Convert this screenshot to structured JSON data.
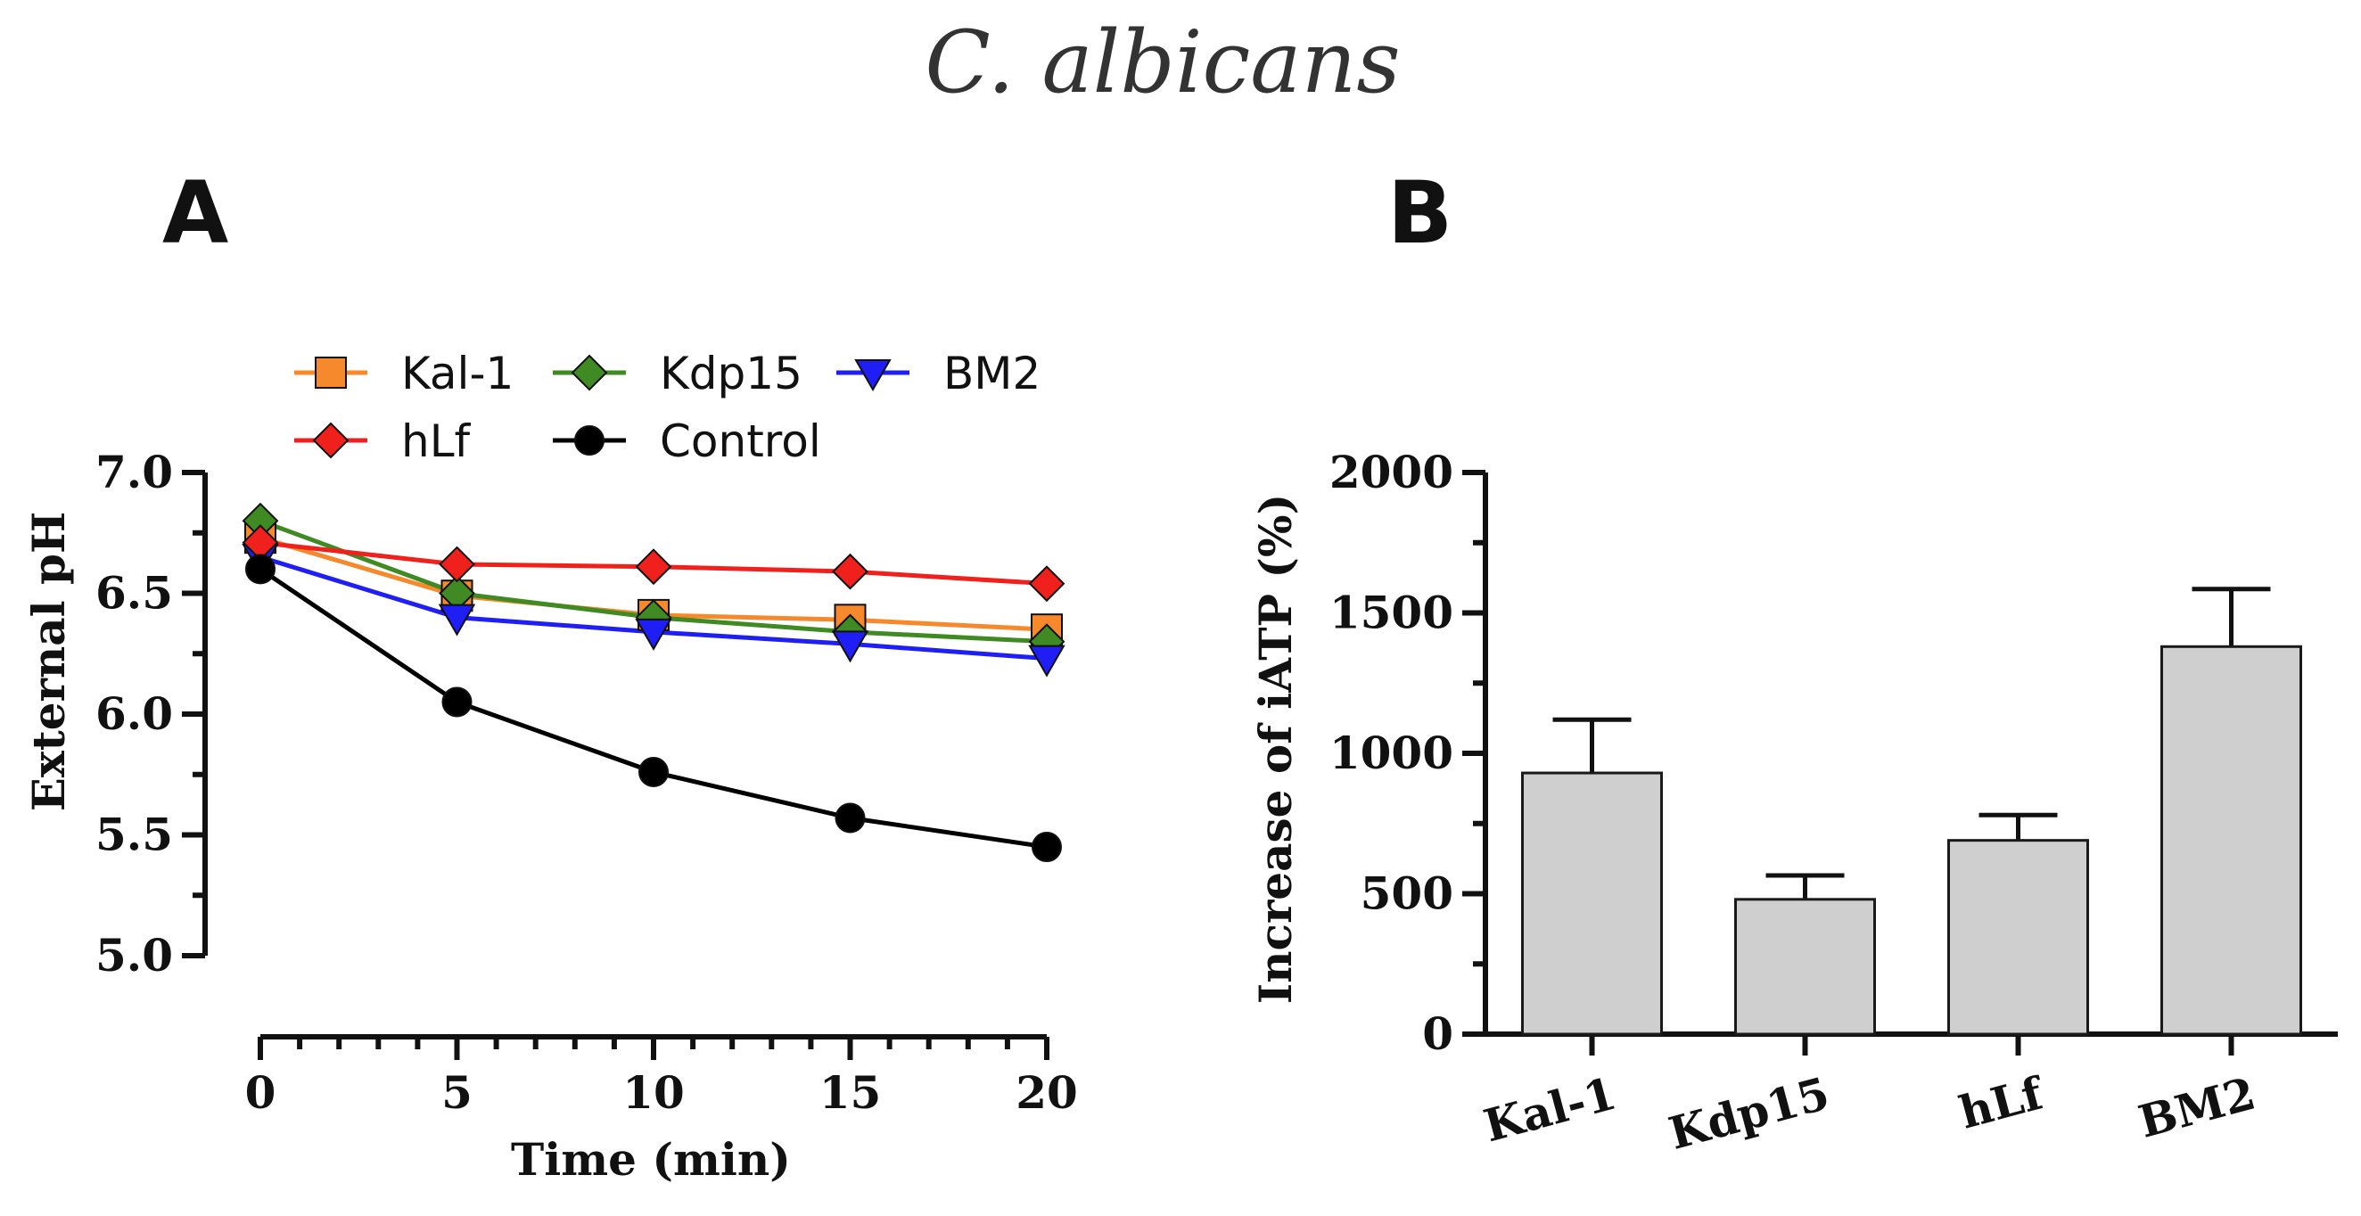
{
  "figure": {
    "title": "C. albicans"
  },
  "colors": {
    "Kal-1": "#f5892b",
    "Kdp15": "#3f8a23",
    "BM2": "#1f1ff5",
    "hLf": "#f0201c",
    "Control": "#000000",
    "bar_fill": "#cfcfcf",
    "bar_stroke": "#1a1a1a"
  },
  "chart_data": [
    {
      "panel": "A",
      "type": "line",
      "title": "",
      "xlabel": "Time (min)",
      "ylabel": "External pH",
      "xlim": [
        0,
        20
      ],
      "ylim": [
        5.0,
        7.0
      ],
      "xticks": [
        0,
        5,
        10,
        15,
        20
      ],
      "xticks_minor": 1,
      "yticks": [
        5.0,
        5.5,
        6.0,
        6.5,
        7.0
      ],
      "ytick_labels": [
        "5.0",
        "5.5",
        "6.0",
        "6.5",
        "7.0"
      ],
      "x": [
        0,
        5,
        10,
        15,
        20
      ],
      "series": [
        {
          "name": "Kal-1",
          "marker": "square",
          "values": [
            6.73,
            6.49,
            6.41,
            6.39,
            6.35
          ]
        },
        {
          "name": "Kdp15",
          "marker": "diamond",
          "values": [
            6.8,
            6.5,
            6.4,
            6.34,
            6.3
          ]
        },
        {
          "name": "BM2",
          "marker": "triangle-down",
          "values": [
            6.65,
            6.4,
            6.34,
            6.29,
            6.23
          ]
        },
        {
          "name": "hLf",
          "marker": "diamond",
          "values": [
            6.71,
            6.62,
            6.61,
            6.59,
            6.54
          ]
        },
        {
          "name": "Control",
          "marker": "circle",
          "values": [
            6.6,
            6.05,
            5.76,
            5.57,
            5.45
          ]
        }
      ],
      "legend": {
        "placement": "top",
        "rows": [
          [
            "Kal-1",
            "Kdp15",
            "BM2"
          ],
          [
            "hLf",
            "Control"
          ]
        ]
      }
    },
    {
      "panel": "B",
      "type": "bar",
      "title": "",
      "xlabel": "",
      "ylabel": "Increase of iATP (%)",
      "ylim": [
        0,
        2000
      ],
      "yticks": [
        0,
        500,
        1000,
        1500,
        2000
      ],
      "categories": [
        "Kal-1",
        "Kdp15",
        "hLf",
        "BM2"
      ],
      "values": [
        930,
        480,
        690,
        1380
      ],
      "errors": [
        190,
        85,
        90,
        205
      ]
    }
  ]
}
